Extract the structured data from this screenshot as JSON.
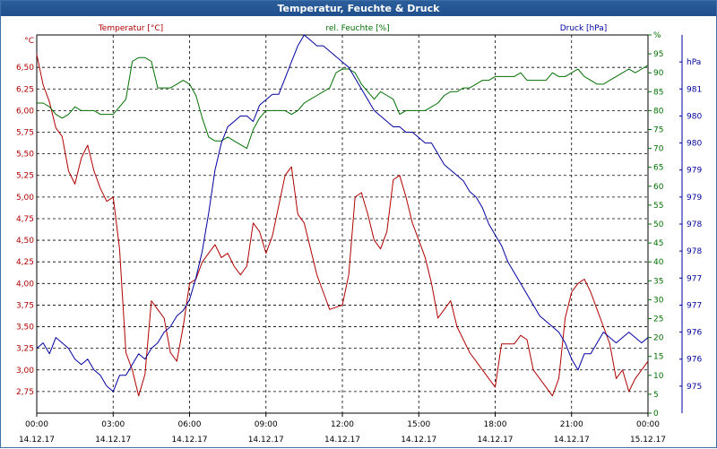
{
  "window": {
    "title": "Temperatur, Feuchte & Druck"
  },
  "colors": {
    "temperature": "#b00000",
    "humidity": "#007000",
    "pressure": "#0000a0",
    "grid": "#000000"
  },
  "chart_data": {
    "type": "line",
    "title": "Temperatur, Feuchte & Druck",
    "grid": true,
    "legend": "top",
    "x_ticks": [
      {
        "time": "00:00",
        "date": "14.12.17"
      },
      {
        "time": "03:00",
        "date": "14.12.17"
      },
      {
        "time": "06:00",
        "date": "14.12.17"
      },
      {
        "time": "09:00",
        "date": "14.12.17"
      },
      {
        "time": "12:00",
        "date": "14.12.17"
      },
      {
        "time": "15:00",
        "date": "14.12.17"
      },
      {
        "time": "18:00",
        "date": "14.12.17"
      },
      {
        "time": "21:00",
        "date": "14.12.17"
      },
      {
        "time": "00:00",
        "date": "15.12.17"
      }
    ],
    "xlim": [
      0,
      24
    ],
    "axes": {
      "left": {
        "unit": "°C",
        "range": [
          2.5,
          6.875
        ],
        "ticks": [
          "2,75",
          "3,00",
          "3,25",
          "3,50",
          "3,75",
          "4,00",
          "4,25",
          "4,50",
          "4,75",
          "5,00",
          "5,25",
          "5,50",
          "5,75",
          "6,00",
          "6,25",
          "6,50"
        ]
      },
      "mid": {
        "unit": "%",
        "range": [
          0,
          100
        ],
        "ticks": [
          "0",
          "5",
          "10",
          "15",
          "20",
          "25",
          "30",
          "35",
          "40",
          "45",
          "50",
          "55",
          "60",
          "65",
          "70",
          "75",
          "80",
          "85",
          "90",
          "95",
          "%"
        ]
      },
      "right": {
        "unit": "hPa",
        "range": [
          974.5,
          981.5
        ],
        "ticks": [
          "975",
          "976",
          "976",
          "977",
          "977",
          "978",
          "978",
          "979",
          "979",
          "980",
          "980",
          "981",
          "hPa"
        ]
      }
    },
    "series": [
      {
        "name": "Temperatur [°C]",
        "axis": "left",
        "x": [
          0,
          0.25,
          0.5,
          0.75,
          1.0,
          1.25,
          1.5,
          1.75,
          2.0,
          2.25,
          2.5,
          2.75,
          3.0,
          3.25,
          3.5,
          3.75,
          4.0,
          4.25,
          4.5,
          4.75,
          5.0,
          5.25,
          5.5,
          5.75,
          6.0,
          6.25,
          6.5,
          7.0,
          7.25,
          7.5,
          7.75,
          8.0,
          8.25,
          8.5,
          8.75,
          9.0,
          9.25,
          9.5,
          9.75,
          10.0,
          10.25,
          10.5,
          10.75,
          11.0,
          11.25,
          11.5,
          12.0,
          12.25,
          12.5,
          12.75,
          13.0,
          13.25,
          13.5,
          13.75,
          14.0,
          14.25,
          14.5,
          14.75,
          15.0,
          15.25,
          15.5,
          15.75,
          16.0,
          16.25,
          16.5,
          17.0,
          17.25,
          17.5,
          17.75,
          18.0,
          18.25,
          18.5,
          18.75,
          19.0,
          19.25,
          19.5,
          19.75,
          20.0,
          20.25,
          20.5,
          20.75,
          21.0,
          21.25,
          21.5,
          21.75,
          22.0,
          22.25,
          22.5,
          22.75,
          23.0,
          23.25,
          23.5,
          23.75,
          24.0
        ],
        "y": [
          6.65,
          6.3,
          6.1,
          5.8,
          5.7,
          5.3,
          5.15,
          5.45,
          5.6,
          5.3,
          5.1,
          4.95,
          5.0,
          4.4,
          3.2,
          3.0,
          2.7,
          2.95,
          3.8,
          3.7,
          3.6,
          3.2,
          3.1,
          3.5,
          4.0,
          4.05,
          4.25,
          4.45,
          4.3,
          4.35,
          4.2,
          4.1,
          4.2,
          4.7,
          4.6,
          4.35,
          4.55,
          4.9,
          5.25,
          5.35,
          4.8,
          4.7,
          4.4,
          4.1,
          3.9,
          3.7,
          3.75,
          4.1,
          5.0,
          5.05,
          4.8,
          4.5,
          4.4,
          4.6,
          5.2,
          5.25,
          5.0,
          4.7,
          4.5,
          4.3,
          4.0,
          3.6,
          3.7,
          3.8,
          3.5,
          3.2,
          3.1,
          3.0,
          2.9,
          2.8,
          3.3,
          3.3,
          3.3,
          3.4,
          3.35,
          3.0,
          2.9,
          2.8,
          2.7,
          2.9,
          3.6,
          3.9,
          4.0,
          4.05,
          3.9,
          3.7,
          3.5,
          3.3,
          2.9,
          3.0,
          2.75,
          2.9,
          3.0,
          3.1
        ]
      },
      {
        "name": "rel. Feuchte [%]",
        "axis": "mid",
        "x": [
          0,
          0.25,
          0.5,
          0.75,
          1.0,
          1.25,
          1.5,
          1.75,
          2.0,
          2.25,
          2.5,
          2.75,
          3.0,
          3.25,
          3.5,
          3.75,
          4.0,
          4.25,
          4.5,
          4.75,
          5.0,
          5.25,
          5.5,
          5.75,
          6.0,
          6.25,
          6.5,
          6.75,
          7.0,
          7.25,
          7.5,
          7.75,
          8.0,
          8.25,
          8.5,
          8.75,
          9.0,
          9.25,
          9.5,
          9.75,
          10.0,
          10.25,
          10.5,
          10.75,
          11.0,
          11.25,
          11.5,
          11.75,
          12.0,
          12.25,
          12.5,
          12.75,
          13.0,
          13.25,
          13.5,
          13.75,
          14.0,
          14.25,
          14.5,
          14.75,
          15.0,
          15.25,
          15.5,
          15.75,
          16.0,
          16.25,
          16.5,
          16.75,
          17.0,
          17.25,
          17.5,
          17.75,
          18.0,
          18.25,
          18.5,
          18.75,
          19.0,
          19.25,
          19.5,
          19.75,
          20.0,
          20.25,
          20.5,
          20.75,
          21.0,
          21.25,
          21.5,
          21.75,
          22.0,
          22.25,
          22.5,
          22.75,
          23.0,
          23.25,
          23.5,
          23.75,
          24.0
        ],
        "y": [
          82,
          82,
          81,
          79,
          78,
          79,
          81,
          80,
          80,
          80,
          79,
          79,
          79,
          81,
          83,
          93,
          94,
          94,
          93,
          86,
          86,
          86,
          87,
          88,
          87,
          84,
          78,
          73,
          72,
          72,
          73,
          72,
          71,
          70,
          75,
          78,
          80,
          80,
          80,
          80,
          79,
          80,
          82,
          83,
          84,
          85,
          86,
          90,
          91,
          91,
          90,
          87,
          85,
          83,
          85,
          84,
          83,
          79,
          80,
          80,
          80,
          80,
          81,
          82,
          84,
          85,
          85,
          86,
          86,
          87,
          88,
          88,
          89,
          89,
          89,
          89,
          90,
          88,
          88,
          88,
          88,
          90,
          89,
          89,
          90,
          91,
          89,
          88,
          87,
          87,
          88,
          89,
          90,
          91,
          90,
          91,
          92
        ]
      },
      {
        "name": "Druck [hPa]",
        "axis": "right",
        "x": [
          0,
          0.25,
          0.5,
          0.75,
          1.0,
          1.25,
          1.5,
          1.75,
          2.0,
          2.25,
          2.5,
          2.75,
          3.0,
          3.25,
          3.5,
          3.75,
          4.0,
          4.25,
          4.5,
          4.75,
          5.0,
          5.25,
          5.5,
          5.75,
          6.0,
          6.25,
          6.5,
          6.75,
          7.0,
          7.25,
          7.5,
          7.75,
          8.0,
          8.25,
          8.5,
          8.75,
          9.0,
          9.25,
          9.5,
          9.75,
          10.0,
          10.25,
          10.5,
          10.75,
          11.0,
          11.25,
          11.5,
          11.75,
          12.0,
          12.25,
          12.5,
          12.75,
          13.0,
          13.25,
          13.5,
          13.75,
          14.0,
          14.25,
          14.5,
          14.75,
          15.0,
          15.25,
          15.5,
          15.75,
          16.0,
          16.25,
          16.5,
          16.75,
          17.0,
          17.25,
          17.5,
          17.75,
          18.0,
          18.25,
          18.5,
          18.75,
          19.0,
          19.25,
          19.5,
          19.75,
          20.0,
          20.25,
          20.5,
          20.75,
          21.0,
          21.25,
          21.5,
          21.75,
          22.0,
          22.25,
          22.5,
          22.75,
          23.0,
          23.25,
          23.5,
          23.75,
          24.0
        ],
        "y": [
          975.7,
          975.8,
          975.6,
          975.9,
          975.8,
          975.7,
          975.5,
          975.4,
          975.5,
          975.3,
          975.2,
          975.0,
          974.9,
          975.2,
          975.2,
          975.4,
          975.6,
          975.5,
          975.7,
          975.8,
          976.0,
          976.1,
          976.3,
          976.4,
          976.6,
          977.0,
          977.5,
          978.2,
          979.0,
          979.5,
          979.8,
          979.9,
          980.0,
          980.0,
          979.9,
          980.2,
          980.3,
          980.4,
          980.4,
          980.7,
          981.0,
          981.3,
          981.5,
          981.4,
          981.3,
          981.3,
          981.2,
          981.1,
          981.0,
          980.9,
          980.7,
          980.5,
          980.3,
          980.1,
          980.0,
          979.9,
          979.8,
          979.8,
          979.7,
          979.7,
          979.6,
          979.5,
          979.5,
          979.3,
          979.1,
          979.0,
          978.9,
          978.8,
          978.6,
          978.5,
          978.3,
          978.0,
          977.8,
          977.6,
          977.3,
          977.1,
          976.9,
          976.7,
          976.5,
          976.3,
          976.2,
          976.1,
          976.0,
          975.8,
          975.5,
          975.3,
          975.6,
          975.6,
          975.8,
          976.0,
          975.9,
          975.8,
          975.9,
          976.0,
          975.9,
          975.8,
          975.9
        ]
      }
    ]
  }
}
